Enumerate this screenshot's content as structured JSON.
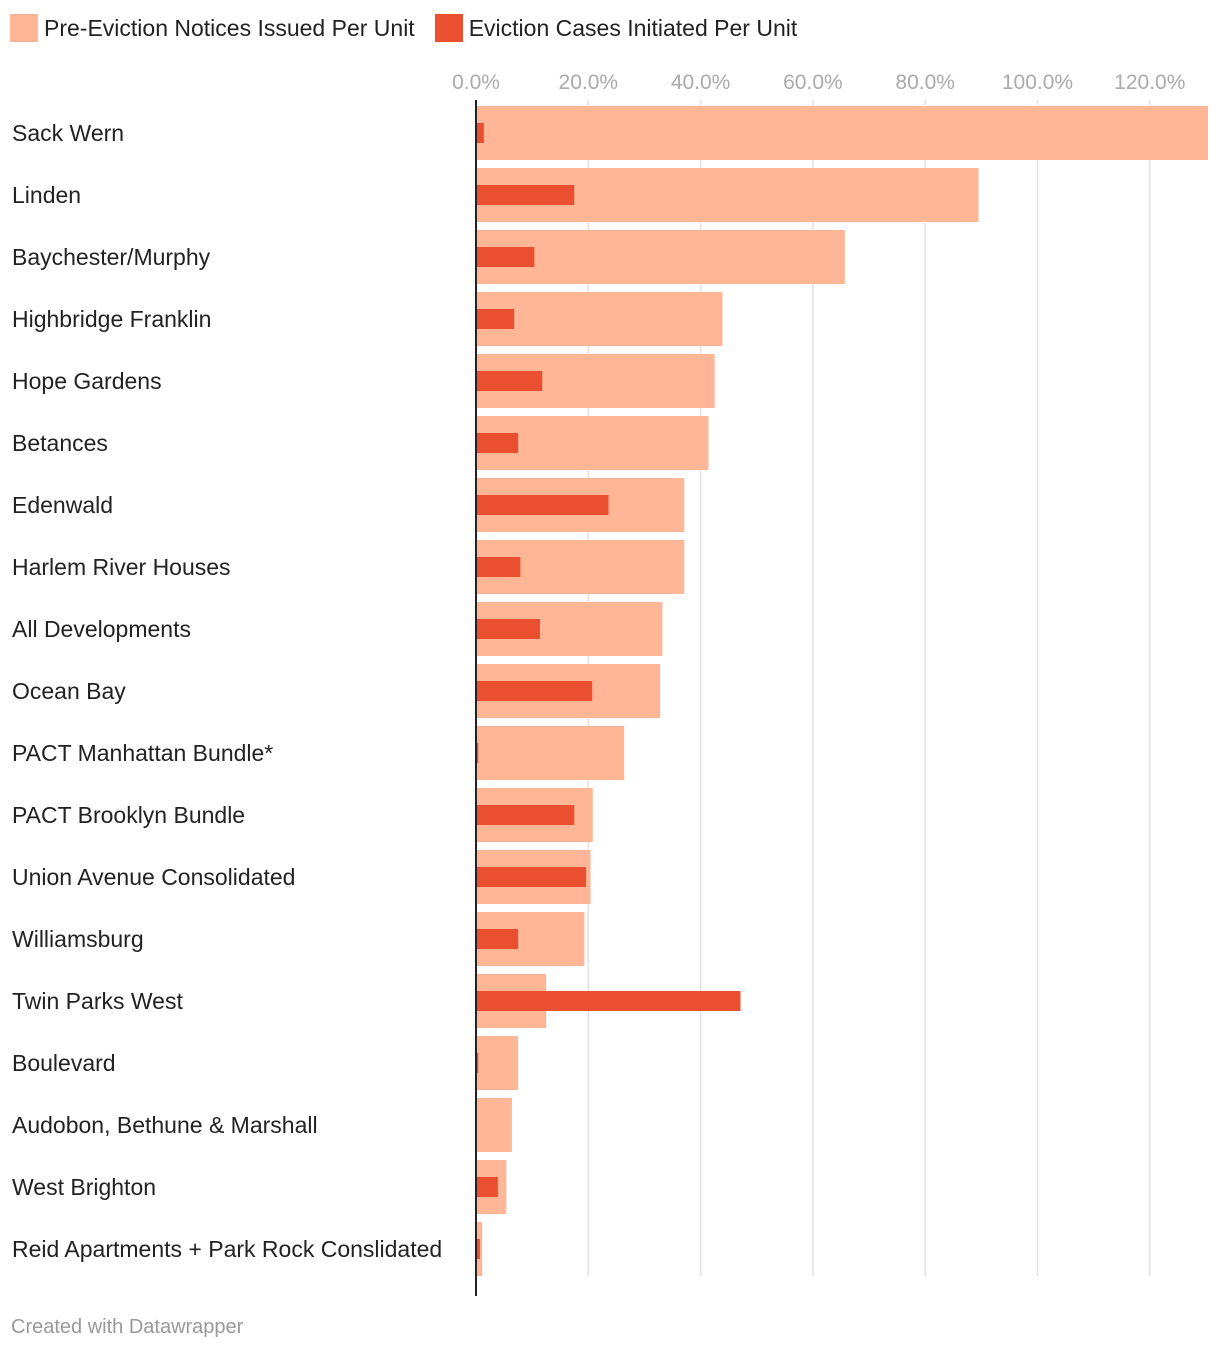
{
  "colors": {
    "notices": "#ffb697",
    "cases": "#ea5030",
    "grid": "#e2e2e2",
    "axis": "#222222"
  },
  "chart_data": {
    "type": "bar",
    "orientation": "horizontal",
    "title": "",
    "xlabel": "",
    "ylabel": "",
    "xlim": [
      0,
      130
    ],
    "grid": true,
    "legend_position": "top-left",
    "ticks": [
      "0.0%",
      "20.0%",
      "40.0%",
      "60.0%",
      "80.0%",
      "100.0%",
      "120.0%"
    ],
    "tick_values": [
      0,
      20,
      40,
      60,
      80,
      100,
      120
    ],
    "categories": [
      "Sack Wern",
      "Linden",
      "Baychester/Murphy",
      "Highbridge Franklin",
      "Hope Gardens",
      "Betances",
      "Edenwald",
      "Harlem River Houses",
      "All Developments",
      "Ocean Bay",
      "PACT Manhattan Bundle*",
      "PACT Brooklyn Bundle",
      "Union Avenue Consolidated",
      "Williamsburg",
      "Twin Parks West",
      "Boulevard",
      "Audobon, Bethune & Marshall",
      "West Brighton",
      "Reid Apartments + Park Rock Conslidated"
    ],
    "series": [
      {
        "name": "Pre-Eviction Notices Issued Per Unit",
        "color": "#ffb697",
        "values": [
          131,
          89.5,
          65.7,
          43.9,
          42.5,
          41.4,
          37.1,
          37.1,
          33.2,
          32.8,
          26.4,
          20.8,
          20.4,
          19.3,
          12.5,
          7.5,
          6.4,
          5.4,
          1.1
        ]
      },
      {
        "name": "Eviction Cases Initiated Per Unit",
        "color": "#ea5030",
        "values": [
          1.4,
          17.5,
          10.4,
          6.8,
          11.8,
          7.5,
          23.6,
          7.9,
          11.4,
          20.7,
          0.4,
          17.5,
          19.6,
          7.5,
          47.1,
          0.4,
          0,
          3.9,
          0.7
        ]
      }
    ]
  },
  "credit": "Created with Datawrapper"
}
